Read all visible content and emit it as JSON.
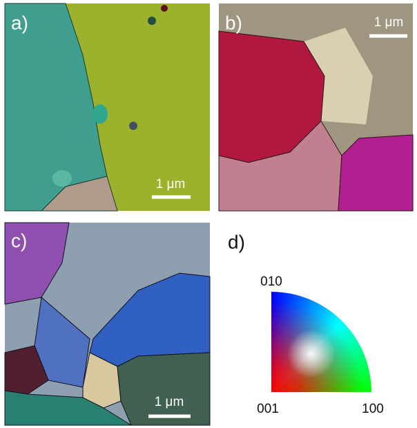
{
  "panels": [
    {
      "label": "a)",
      "scale_bar": "1 μm"
    },
    {
      "label": "b)",
      "scale_bar": "1 μm"
    },
    {
      "label": "c)",
      "scale_bar": "1 μm"
    },
    {
      "label": "d)"
    }
  ],
  "color_key": {
    "top": "010",
    "origin": "001",
    "right": "100"
  }
}
